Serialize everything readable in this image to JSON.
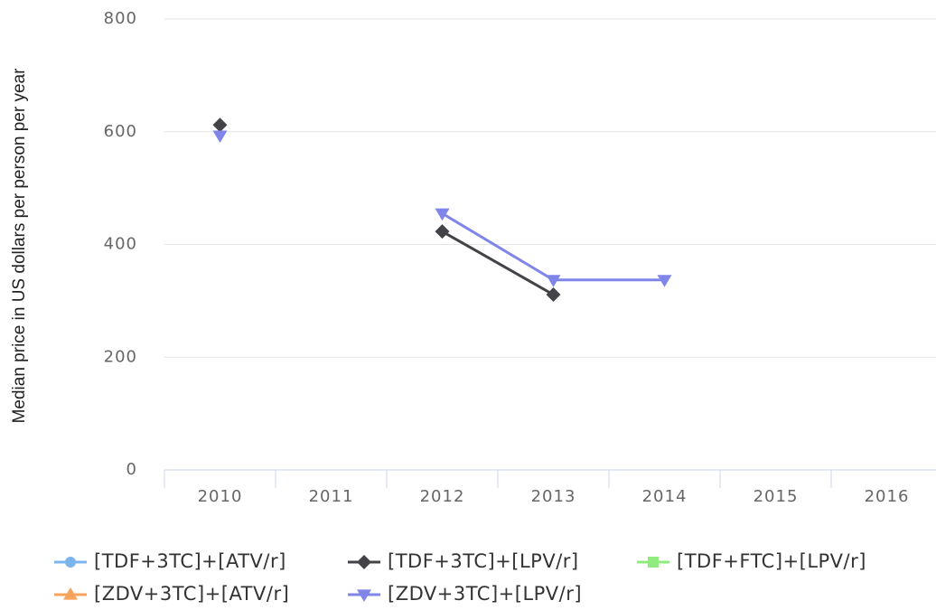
{
  "chart_data": {
    "type": "line",
    "y_label": "Median price in US dollars per person per year",
    "categories": [
      "2010",
      "2011",
      "2012",
      "2013",
      "2014",
      "2015",
      "2016"
    ],
    "series": [
      {
        "name": "[TDF+3TC]+[ATV/r]",
        "color": "#7cb5ec",
        "marker": "circle",
        "values": [
          null,
          null,
          null,
          null,
          null,
          null,
          null
        ]
      },
      {
        "name": "[TDF+3TC]+[LPV/r]",
        "color": "#434348",
        "marker": "diamond",
        "values": [
          612,
          null,
          423,
          311,
          null,
          null,
          null
        ]
      },
      {
        "name": "[TDF+FTC]+[LPV/r]",
        "color": "#90ed7d",
        "marker": "square",
        "values": [
          null,
          null,
          null,
          null,
          null,
          null,
          null
        ]
      },
      {
        "name": "[ZDV+3TC]+[ATV/r]",
        "color": "#f7a35c",
        "marker": "triangle",
        "values": [
          null,
          null,
          null,
          null,
          null,
          null,
          null
        ]
      },
      {
        "name": "[ZDV+3TC]+[LPV/r]",
        "color": "#8085e9",
        "marker": "triangle-down",
        "values": [
          593,
          null,
          455,
          337,
          337,
          null,
          null
        ]
      }
    ],
    "ylim": [
      0,
      800
    ],
    "yticks": [
      0,
      200,
      400,
      600,
      800
    ],
    "grid": true,
    "legend": "bottom"
  }
}
